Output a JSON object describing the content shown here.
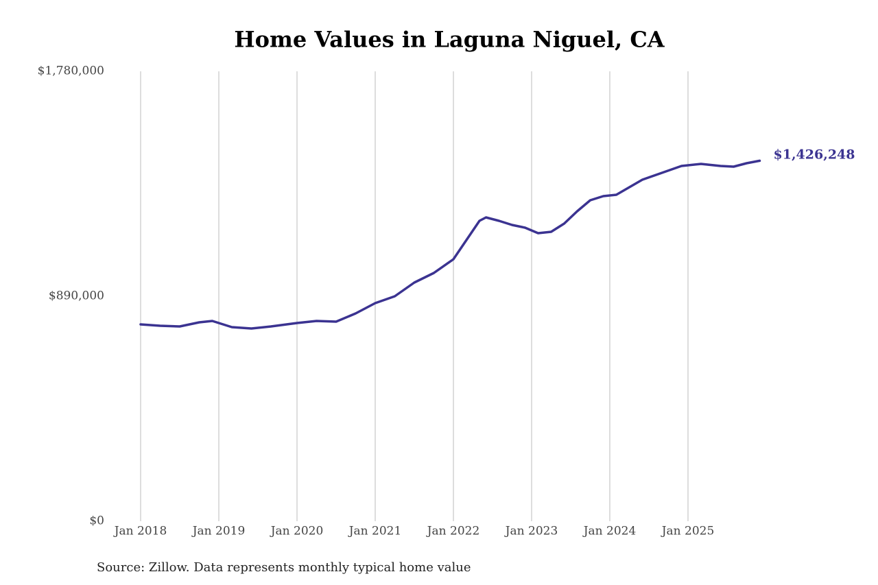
{
  "chart_data": {
    "type": "line",
    "title": "Home Values in Laguna Niguel, CA",
    "source": "Source: Zillow. Data represents monthly typical home value",
    "x": [
      "2018-01",
      "2018-04",
      "2018-07",
      "2018-10",
      "2018-12",
      "2019-03",
      "2019-06",
      "2019-09",
      "2020-01",
      "2020-04",
      "2020-07",
      "2020-10",
      "2021-01",
      "2021-04",
      "2021-07",
      "2021-10",
      "2022-01",
      "2022-03",
      "2022-05",
      "2022-06",
      "2022-08",
      "2022-10",
      "2022-12",
      "2023-02",
      "2023-04",
      "2023-06",
      "2023-08",
      "2023-10",
      "2023-12",
      "2024-02",
      "2024-04",
      "2024-06",
      "2024-09",
      "2024-12",
      "2025-03",
      "2025-06",
      "2025-08",
      "2025-10",
      "2025-12"
    ],
    "series": [
      {
        "name": "Home value",
        "color": "#3b3391",
        "values": [
          778700,
          773300,
          770600,
          786900,
          792300,
          767900,
          762500,
          770600,
          784200,
          792300,
          789600,
          822200,
          862900,
          890000,
          944300,
          982300,
          1036500,
          1112500,
          1188500,
          1202000,
          1188500,
          1172200,
          1161300,
          1139600,
          1145100,
          1177600,
          1226500,
          1269900,
          1286200,
          1291600,
          1321400,
          1351300,
          1378400,
          1405600,
          1413700,
          1405600,
          1402900,
          1416400,
          1426248
        ],
        "value_labels": [
          null,
          null,
          null,
          null,
          null,
          null,
          null,
          null,
          null,
          null,
          null,
          null,
          null,
          null,
          null,
          null,
          null,
          null,
          null,
          null,
          null,
          null,
          null,
          null,
          null,
          null,
          null,
          null,
          null,
          null,
          null,
          null,
          null,
          null,
          null,
          null,
          null,
          null,
          "$1,426,248"
        ]
      }
    ],
    "xlim": [
      "2017-08",
      "2025-12"
    ],
    "xticks": [
      {
        "value": "2018-01",
        "label": "Jan 2018"
      },
      {
        "value": "2019-01",
        "label": "Jan 2019"
      },
      {
        "value": "2020-01",
        "label": "Jan 2020"
      },
      {
        "value": "2021-01",
        "label": "Jan 2021"
      },
      {
        "value": "2022-01",
        "label": "Jan 2022"
      },
      {
        "value": "2023-01",
        "label": "Jan 2023"
      },
      {
        "value": "2024-01",
        "label": "Jan 2024"
      },
      {
        "value": "2025-01",
        "label": "Jan 2025"
      }
    ],
    "ylim": [
      0,
      1780000
    ],
    "yticks": [
      {
        "value": 0,
        "label": "$0"
      },
      {
        "value": 890000,
        "label": "$890,000"
      },
      {
        "value": 1780000,
        "label": "$1,780,000"
      }
    ],
    "grid": "x"
  }
}
